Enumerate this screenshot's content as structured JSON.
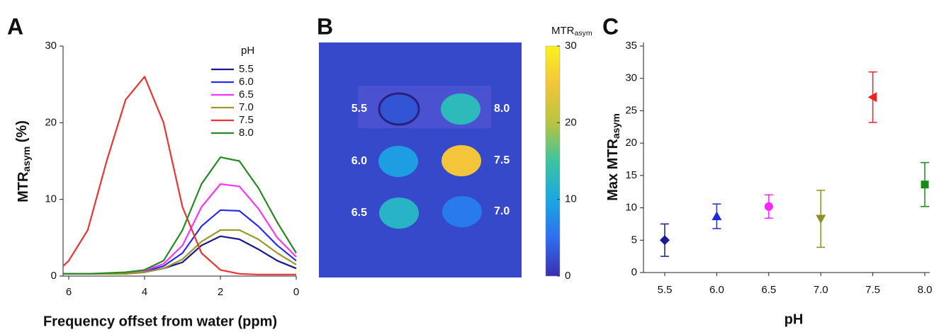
{
  "chart_data": [
    {
      "type": "line",
      "panel_label": "A",
      "xlabel": "Frequency offset from water (ppm)",
      "ylabel": [
        "MTR",
        "asym",
        " (%)"
      ],
      "legend_title": "pH",
      "x": [
        6.15,
        6,
        5.5,
        5,
        4.5,
        4,
        3.5,
        3,
        2.5,
        2,
        1.5,
        1,
        0.5,
        0
      ],
      "xlim": [
        6.15,
        0
      ],
      "xticks": [
        6,
        4,
        2,
        0
      ],
      "ylim": [
        0,
        30
      ],
      "yticks": [
        0,
        10,
        20,
        30
      ],
      "series": [
        {
          "name": "5.5",
          "color": "#1a1a8c",
          "values": [
            0.3,
            0.3,
            0.3,
            0.3,
            0.3,
            0.5,
            1.0,
            1.8,
            4.0,
            5.2,
            4.8,
            3.5,
            2.0,
            1.0
          ]
        },
        {
          "name": "6.0",
          "color": "#2b2bf0",
          "values": [
            0.3,
            0.3,
            0.3,
            0.3,
            0.4,
            0.6,
            1.3,
            3.0,
            6.5,
            8.6,
            8.5,
            6.5,
            4.0,
            2.0
          ]
        },
        {
          "name": "6.5",
          "color": "#ff33ff",
          "values": [
            0.3,
            0.3,
            0.3,
            0.3,
            0.4,
            0.7,
            1.6,
            4.0,
            9.0,
            12.0,
            11.7,
            8.8,
            5.0,
            2.5
          ]
        },
        {
          "name": "7.0",
          "color": "#9a9a2a",
          "values": [
            0.3,
            0.3,
            0.3,
            0.3,
            0.3,
            0.5,
            1.0,
            2.2,
            4.5,
            6.0,
            6.0,
            4.8,
            3.0,
            1.5
          ]
        },
        {
          "name": "7.5",
          "color": "#ee3333",
          "values": [
            1.3,
            2.0,
            6.0,
            15.0,
            23.0,
            26.0,
            20.0,
            9.0,
            3.0,
            0.8,
            0.3,
            0.2,
            0.2,
            0.2
          ]
        },
        {
          "name": "8.0",
          "color": "#228b22",
          "values": [
            0.3,
            0.3,
            0.3,
            0.4,
            0.5,
            0.8,
            2.0,
            6.0,
            12.0,
            15.5,
            15.0,
            11.5,
            7.0,
            3.0
          ]
        }
      ]
    },
    {
      "type": "heatmap",
      "panel_label": "B",
      "colorbar_title": [
        "MTR",
        "asym"
      ],
      "categories": [
        "5.5",
        "8.0",
        "6.0",
        "7.5",
        "6.5",
        "7.0"
      ],
      "values": [
        3,
        13,
        9,
        25,
        12,
        6
      ],
      "background": 2,
      "clim": [
        0,
        30
      ],
      "cticks": [
        0,
        10,
        20,
        30
      ],
      "colormap": [
        "#3a2fb0",
        "#2d6ff0",
        "#1aa8e0",
        "#3cc4a0",
        "#b8c43e",
        "#f4c43a",
        "#f9f21e"
      ]
    },
    {
      "type": "errorbar",
      "panel_label": "C",
      "xlabel": "pH",
      "ylabel": [
        "Max MTR",
        "asym"
      ],
      "categories": [
        "5.5",
        "6.0",
        "6.5",
        "7.0",
        "7.5",
        "8.0"
      ],
      "values": [
        5.0,
        8.7,
        10.2,
        8.3,
        27.1,
        13.6
      ],
      "errors": [
        2.5,
        1.9,
        1.8,
        4.4,
        3.9,
        3.4
      ],
      "colors": [
        "#1a1a9a",
        "#1a2ae0",
        "#ff22ff",
        "#8e8e22",
        "#ee2222",
        "#1a8a1a"
      ],
      "markers": [
        "diamond",
        "triangle-up",
        "circle",
        "triangle-down",
        "triangle-left",
        "square"
      ],
      "ylim": [
        0,
        35
      ],
      "yticks": [
        0,
        5,
        10,
        15,
        20,
        25,
        30,
        35
      ]
    }
  ]
}
